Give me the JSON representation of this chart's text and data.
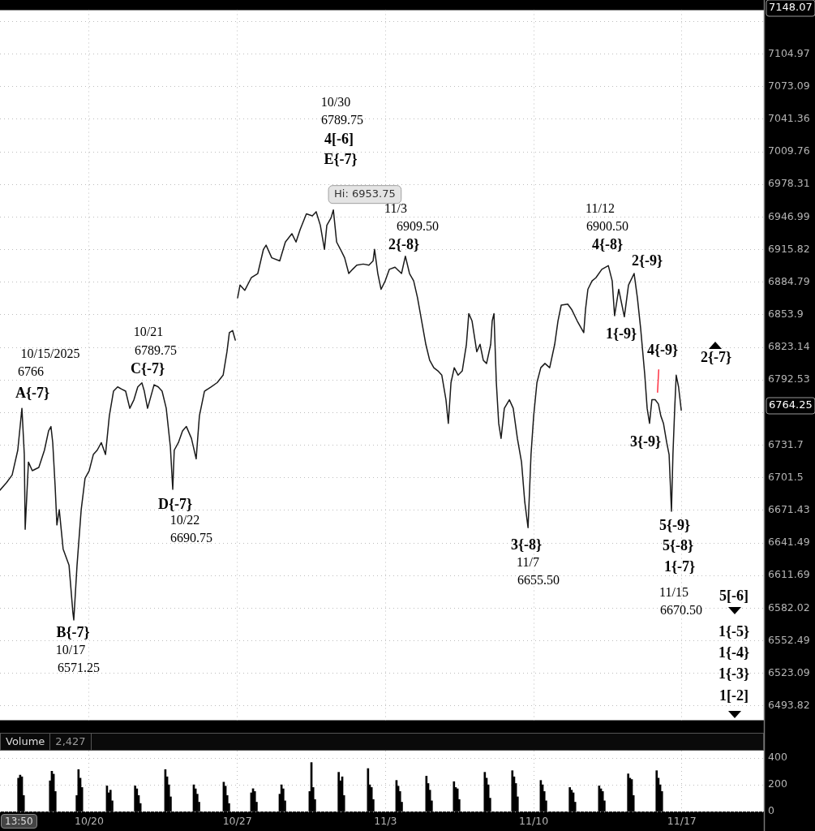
{
  "chart_data": [
    {
      "type": "line",
      "log": true,
      "grid": true,
      "tick_labels": "y",
      "xlim": [
        "2025-10-15T18:52",
        "2025-11-20T21:04"
      ],
      "xticks": [
        {
          "value": "2025-10-20",
          "label": null
        },
        {
          "value": "2025-10-27",
          "label": null
        },
        {
          "value": "2025-11-03",
          "label": null
        },
        {
          "value": "2025-11-10",
          "label": null
        },
        {
          "value": "2025-11-17",
          "label": null
        }
      ],
      "ylim": [
        6481,
        7148.07
      ],
      "yticks": [
        6493.82,
        6523.09,
        6552.49,
        6582.02,
        6611.69,
        6641.49,
        6671.43,
        6701.5,
        6731.7,
        {
          "value": 6762,
          "label": null
        },
        6792.53,
        6823.14,
        6853.9,
        6884.79,
        6915.82,
        6946.99,
        6978.31,
        7009.76,
        7041.36,
        7073.09,
        7104.97,
        {
          "value": 7137,
          "label": null
        }
      ],
      "series": [
        {
          "color": "#1a1a1a",
          "x": [
            "2025-10-15T18:52",
            "2025-10-16T02:15",
            "2025-10-16T08:38",
            "2025-10-16T15:01",
            "2025-10-16T19:44",
            "2025-10-16T22:25",
            "2025-10-16T23:25",
            "2025-10-17T03:07",
            "2025-10-17T07:29",
            "2025-10-17T14:53",
            "2025-10-17T21:16",
            "2025-10-18T01:58",
            "2025-10-18T04:39",
            "2025-10-18T06:40",
            "2025-10-18T09:22",
            "2025-10-18T11:23",
            "2025-10-18T14:04",
            "2025-10-18T18:26",
            "2025-10-19T01:09",
            "2025-10-19T05:31",
            "2025-10-19T06:32",
            "2025-10-19T10:13",
            "2025-10-19T14:56",
            "2025-10-19T19:18",
            "2025-10-20T00:00",
            "2025-10-20T04:42",
            "2025-10-20T09:04",
            "2025-10-20T13:46",
            "2025-10-20T18:29",
            "2025-10-20T22:51",
            "2025-10-21T03:33",
            "2025-10-21T08:15",
            "2025-10-21T12:37",
            "2025-10-21T17:20",
            "2025-10-21T22:02",
            "2025-10-22T02:44",
            "2025-10-22T07:06",
            "2025-10-22T11:48",
            "2025-10-22T14:30",
            "2025-10-22T18:12",
            "2025-10-23T01:35",
            "2025-10-23T06:17",
            "2025-10-23T10:39",
            "2025-10-23T15:22",
            "2025-10-23T20:04",
            "2025-10-23T22:45",
            "2025-10-24T00:26",
            "2025-10-24T05:08",
            "2025-10-24T09:50",
            "2025-10-24T14:12",
            "2025-10-24T19:55",
            "2025-10-25T01:18",
            "2025-10-25T04:59",
            "2025-10-25T10:42",
            "2025-10-25T18:06",
            "2025-10-26T01:09",
            "2025-10-26T07:52",
            "2025-10-26T12:14",
            "2025-10-26T14:56",
            "2025-10-26T18:37",
            "2025-10-26T21:39",
            "2025-10-26T22:59",
            "2025-10-27T00:20",
            "2025-10-27T03:01",
            "2025-10-27T08:24",
            "2025-10-27T15:47",
            "2025-10-27T23:11",
            "2025-10-28T05:34",
            "2025-10-28T08:35",
            "2025-10-28T14:59",
            "2025-10-29T00:03",
            "2025-10-29T06:26",
            "2025-10-29T13:49",
            "2025-10-29T18:32",
            "2025-10-29T23:14",
            "2025-10-30T06:17",
            "2025-10-30T13:00",
            "2025-10-30T17:22",
            "2025-10-30T22:05",
            "2025-10-31T02:47",
            "2025-10-31T05:28",
            "2025-10-31T10:10",
            "2025-10-31T12:52",
            "2025-10-31T16:34",
            "2025-10-31T20:56",
            "2025-11-01T01:38",
            "2025-11-01T06:20",
            "2025-11-01T10:42",
            "2025-11-01T15:24",
            "2025-11-01T22:48",
            "2025-11-02T05:11",
            "2025-11-02T09:53",
            "2025-11-02T11:34",
            "2025-11-02T15:16",
            "2025-11-02T18:58",
            "2025-11-02T23:40",
            "2025-11-03T04:22",
            "2025-11-03T10:45",
            "2025-11-03T18:09",
            "2025-11-03T22:31",
            "2025-11-04T03:13",
            "2025-11-04T07:55",
            "2025-11-04T12:17",
            "2025-11-04T17:00",
            "2025-11-04T21:42",
            "2025-11-05T02:04",
            "2025-11-05T06:46",
            "2025-11-05T11:28",
            "2025-11-05T15:50",
            "2025-11-05T20:33",
            "2025-11-05T23:14",
            "2025-11-06T02:15",
            "2025-11-06T05:57",
            "2025-11-06T10:19",
            "2025-11-06T15:01",
            "2025-11-06T19:44",
            "2025-11-06T22:25",
            "2025-11-07T02:07",
            "2025-11-07T07:29",
            "2025-11-07T11:11",
            "2025-11-07T14:53",
            "2025-11-07T18:35",
            "2025-11-07T23:17",
            "2025-11-08T00:58",
            "2025-11-08T02:59",
            "2025-11-08T05:40",
            "2025-11-08T08:21",
            "2025-11-08T11:02",
            "2025-11-08T14:44",
            "2025-11-08T20:27",
            "2025-11-09T00:49",
            "2025-11-09T05:31",
            "2025-11-09T10:13",
            "2025-11-09T13:55",
            "2025-11-09T17:37",
            "2025-11-09T20:59",
            "2025-11-10T00:00",
            "2025-11-10T03:42",
            "2025-11-10T08:04",
            "2025-11-10T12:46",
            "2025-11-10T18:09",
            "2025-11-10T23:51",
            "2025-11-11T03:33",
            "2025-11-11T07:15",
            "2025-11-11T14:38",
            "2025-11-11T19:00",
            "2025-11-12T01:24",
            "2025-11-12T08:47",
            "2025-11-12T10:48",
            "2025-11-12T13:29",
            "2025-11-12T18:12",
            "2025-11-12T22:34",
            "2025-11-13T05:17",
            "2025-11-13T12:40",
            "2025-11-13T17:02",
            "2025-11-13T19:44",
            "2025-11-14T00:26",
            "2025-11-14T06:49",
            "2025-11-14T11:31",
            "2025-11-14T17:54",
            "2025-11-14T21:36",
            "2025-11-15T01:18",
            "2025-11-15T06:00",
            "2025-11-15T08:41",
            "2025-11-15T11:23",
            "2025-11-15T14:04",
            "2025-11-15T17:46",
            "2025-11-15T21:27",
            "2025-11-16T00:09",
            "2025-11-16T03:10",
            "2025-11-16T06:52",
            "2025-11-16T09:33",
            "2025-11-16T12:14",
            "2025-11-16T13:55",
            "2025-11-16T15:56",
            "2025-11-16T17:37",
            "2025-11-16T20:18",
            "2025-11-16T23:20"
          ],
          "values": [
            6690,
            6697,
            6704,
            6727,
            6766,
            6723,
            6654,
            6716,
            6708,
            6711,
            6727,
            6745,
            6749,
            6734,
            6694,
            6658,
            6672,
            6636,
            6621,
            6578,
            6571.25,
            6621,
            6672,
            6701,
            6708,
            6723,
            6727,
            6734,
            6723,
            6759,
            6782,
            6786,
            6784,
            6782,
            6766,
            6774,
            6786,
            6789.75,
            6782,
            6766,
            6788,
            6786,
            6782,
            6766,
            6730,
            6690.75,
            6727,
            6734,
            6745,
            6749,
            6738,
            6719,
            6759,
            6782,
            6786,
            6790,
            6797,
            6819,
            6837,
            6839,
            6830,
            null,
            6870,
            6882,
            6877,
            6889,
            6893,
            6916,
            6920,
            6908,
            6905,
            6923,
            6931,
            6923,
            6935,
            6950,
            6948,
            6952,
            6939,
            6916,
            6939,
            6946,
            6953.75,
            6923,
            6916,
            6908,
            6893,
            6897,
            6901,
            6902,
            6901,
            6905,
            6916,
            6893,
            6878,
            6886,
            6897,
            6899,
            6893,
            6909.5,
            6893,
            6886,
            6870,
            6848,
            6826,
            6811,
            6804,
            6801,
            6797,
            6774,
            6752,
            6790,
            6804,
            6797,
            6801,
            6826,
            6855,
            6848,
            6819,
            6826,
            6811,
            6808,
            6826,
            6848,
            6855,
            6790,
            6752,
            6738,
            6766,
            6774,
            6766,
            6738,
            6716,
            6679,
            6655.5,
            6723,
            6759,
            6790,
            6804,
            6808,
            6804,
            6826,
            6848,
            6863,
            6864,
            6859,
            6848,
            6837,
            6859,
            6878,
            6886,
            6889,
            6897,
            6900.5,
            6886,
            6853,
            6878,
            6852,
            6882,
            6893,
            6870,
            6841,
            6797,
            6766,
            6752,
            6774,
            6774,
            6770,
            6759,
            6752,
            6734,
            6723,
            6670.5,
            6723,
            6766,
            6797,
            6786,
            6764.25
          ]
        },
        {
          "color": "#ff3344",
          "x": [
            "2025-11-15T21:47",
            "2025-11-15T20:27"
          ],
          "values": [
            6802,
            6781
          ]
        }
      ],
      "annotations": [
        "10/15/2025",
        "6766",
        "A{-7}",
        "10/21",
        "6789.75",
        "C{-7}",
        "D{-7}",
        "10/22",
        "6690.75",
        "B{-7}",
        "10/17",
        "6571.25",
        "10/30",
        "6789.75",
        "4[-6]",
        "E{-7}",
        "11/3",
        "6909.50",
        "2{-8}",
        "11/12",
        "6900.50",
        "4{-8}",
        "2{-9}",
        "1{-9}",
        "4{-9}",
        "2{-7}",
        "3{-9}",
        "5{-9}",
        "5{-8}",
        "1{-7}",
        "11/15",
        "6670.50",
        "3{-8}",
        "11/7",
        "6655.50",
        "5[-6]",
        "1{-5}",
        "1{-4}",
        "1{-3}",
        "1[-2]",
        "7148.07",
        "6764.25",
        {
          "text": "Hi: 6953.75",
          "x": "2025-10-31T12:52",
          "y": 6953.75
        }
      ]
    },
    {
      "type": "bar",
      "title": "Volume",
      "color": "#000000",
      "grid": true,
      "xlim": [
        "2025-10-15T18:52",
        "2025-11-20T21:04"
      ],
      "xticks": [
        {
          "value": "2025-10-20",
          "label": "10/20"
        },
        {
          "value": "2025-10-27",
          "label": "10/27"
        },
        {
          "value": "2025-11-03",
          "label": "11/3"
        },
        {
          "value": "2025-11-10",
          "label": "11/10"
        },
        {
          "value": "2025-11-17",
          "label": "11/17"
        }
      ],
      "ylim": [
        0,
        456
      ],
      "yticks": [
        0,
        200,
        400
      ],
      "x": [
        "2025-10-16T15:43",
        "2025-10-16T17:43",
        "2025-10-16T19:43",
        "2025-10-16T21:43",
        "2025-10-18T03:40",
        "2025-10-18T05:40",
        "2025-10-18T07:40",
        "2025-10-18T09:40",
        "2025-10-19T09:54",
        "2025-10-19T11:54",
        "2025-10-19T13:54",
        "2025-10-19T15:54",
        "2025-10-20T20:10",
        "2025-10-20T22:10",
        "2025-10-21T00:10",
        "2025-10-21T02:10",
        "2025-10-22T04:06",
        "2025-10-22T06:06",
        "2025-10-22T08:06",
        "2025-10-22T10:06",
        "2025-10-23T14:22",
        "2025-10-23T16:22",
        "2025-10-23T18:22",
        "2025-10-23T20:22",
        "2025-10-24T22:37",
        "2025-10-25T00:37",
        "2025-10-25T02:37",
        "2025-10-25T04:37",
        "2025-10-26T08:34",
        "2025-10-26T10:34",
        "2025-10-26T12:34",
        "2025-10-26T14:34",
        "2025-10-27T15:48",
        "2025-10-27T17:48",
        "2025-10-27T19:48",
        "2025-10-27T21:48",
        "2025-10-29T00:04",
        "2025-10-29T02:04",
        "2025-10-29T04:04",
        "2025-10-29T06:04",
        "2025-10-30T10:00",
        "2025-10-30T12:00",
        "2025-10-30T14:00",
        "2025-10-30T16:00",
        "2025-10-31T18:56",
        "2025-10-31T20:56",
        "2025-10-31T22:56",
        "2025-11-01T00:56",
        "2025-11-02T04:11",
        "2025-11-02T06:11",
        "2025-11-02T08:11",
        "2025-11-02T10:11",
        "2025-11-03T12:27",
        "2025-11-03T14:27",
        "2025-11-03T16:27",
        "2025-11-03T18:27",
        "2025-11-04T22:23",
        "2025-11-05T00:23",
        "2025-11-05T02:23",
        "2025-11-05T04:23",
        "2025-11-06T05:38",
        "2025-11-06T07:38",
        "2025-11-06T09:38",
        "2025-11-06T11:38",
        "2025-11-07T16:35",
        "2025-11-07T18:35",
        "2025-11-07T20:35",
        "2025-11-07T22:35",
        "2025-11-08T23:49",
        "2025-11-09T01:49",
        "2025-11-09T03:49",
        "2025-11-09T05:49",
        "2025-11-10T08:05",
        "2025-11-10T10:05",
        "2025-11-10T12:05",
        "2025-11-10T14:05",
        "2025-11-11T17:00",
        "2025-11-11T19:00",
        "2025-11-11T21:00",
        "2025-11-11T23:00",
        "2025-11-13T02:16",
        "2025-11-13T04:16",
        "2025-11-13T06:16",
        "2025-11-13T08:16",
        "2025-11-14T11:12",
        "2025-11-14T13:12",
        "2025-11-14T15:12",
        "2025-11-14T17:12",
        "2025-11-15T19:27",
        "2025-11-15T21:27",
        "2025-11-15T23:27",
        "2025-11-16T01:27"
      ],
      "values": [
        250,
        273,
        260,
        120,
        230,
        302,
        280,
        150,
        120,
        314,
        250,
        180,
        192,
        140,
        160,
        80,
        192,
        170,
        120,
        60,
        314,
        260,
        200,
        110,
        200,
        170,
        130,
        70,
        220,
        190,
        120,
        60,
        140,
        171,
        150,
        70,
        130,
        200,
        170,
        80,
        150,
        367,
        180,
        90,
        294,
        230,
        260,
        120,
        322,
        200,
        180,
        90,
        233,
        190,
        150,
        70,
        265,
        210,
        160,
        80,
        224,
        180,
        170,
        90,
        294,
        250,
        200,
        100,
        306,
        260,
        210,
        110,
        233,
        200,
        150,
        80,
        180,
        160,
        140,
        70,
        192,
        170,
        150,
        80,
        282,
        250,
        240,
        120,
        306,
        250,
        200,
        150
      ],
      "annotations": [
        "2,427",
        "13:50"
      ]
    }
  ]
}
